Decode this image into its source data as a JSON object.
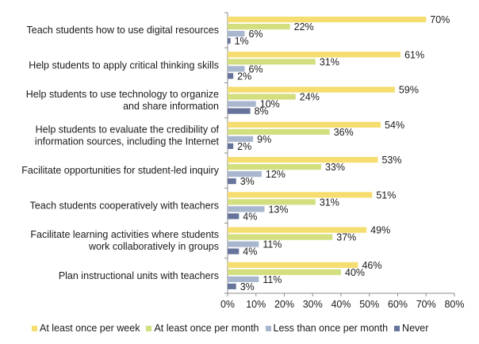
{
  "chart_data": {
    "type": "bar",
    "orientation": "horizontal",
    "categories": [
      [
        "Teach students how to use digital resources"
      ],
      [
        "Help students to apply critical thinking  skills"
      ],
      [
        "Help students to use technology to organize",
        "and share information"
      ],
      [
        "Help students to evaluate the credibility of",
        "information sources, including the Internet"
      ],
      [
        "Facilitate opportunities for student-led inquiry"
      ],
      [
        "Teach students cooperatively with teachers"
      ],
      [
        "Facilitate learning  activities where  students",
        "work collaboratively in groups"
      ],
      [
        "Plan instructional units with teachers"
      ]
    ],
    "series": [
      {
        "name": "At least once per week",
        "color": "#F5DD70",
        "values": [
          70,
          61,
          59,
          54,
          53,
          51,
          49,
          46
        ]
      },
      {
        "name": "At least once per month",
        "color": "#D3DE7F",
        "values": [
          22,
          31,
          24,
          36,
          33,
          31,
          37,
          40
        ]
      },
      {
        "name": "Less than once per month",
        "color": "#A9B7CE",
        "values": [
          6,
          6,
          10,
          9,
          12,
          13,
          11,
          11
        ]
      },
      {
        "name": "Never",
        "color": "#66739A",
        "values": [
          1,
          2,
          8,
          2,
          3,
          4,
          4,
          3
        ]
      }
    ],
    "xlim": [
      0,
      80
    ],
    "xticks": [
      "0%",
      "10%",
      "20%",
      "30%",
      "40%",
      "50%",
      "60%",
      "70%",
      "80%"
    ],
    "value_suffix": "%",
    "legend_position": "bottom",
    "grid": false
  }
}
